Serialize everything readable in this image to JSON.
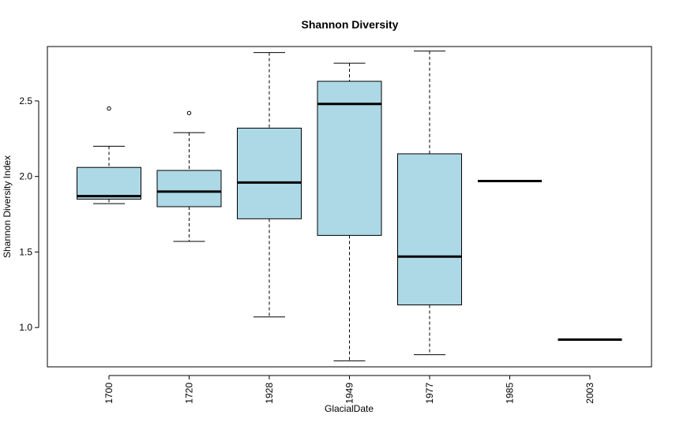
{
  "chart_data": {
    "type": "boxplot",
    "title": "Shannon Diversity",
    "xlabel": "GlacialDate",
    "ylabel": "Shannon Diversity Index",
    "ylim": [
      0.74,
      2.86
    ],
    "yticks": [
      "1.0",
      "1.5",
      "2.0",
      "2.5"
    ],
    "ytick_values": [
      1.0,
      1.5,
      2.0,
      2.5
    ],
    "box_color": "#add8e6",
    "grid": false,
    "categories": [
      "1700",
      "1720",
      "1928",
      "1949",
      "1977",
      "1985",
      "2003"
    ],
    "boxes": [
      {
        "category": "1700",
        "whisker_low": 1.82,
        "q1": 1.85,
        "median": 1.87,
        "q3": 2.06,
        "whisker_high": 2.2,
        "outliers": [
          2.45
        ]
      },
      {
        "category": "1720",
        "whisker_low": 1.57,
        "q1": 1.8,
        "median": 1.9,
        "q3": 2.04,
        "whisker_high": 2.29,
        "outliers": [
          2.42
        ]
      },
      {
        "category": "1928",
        "whisker_low": 1.07,
        "q1": 1.72,
        "median": 1.96,
        "q3": 2.32,
        "whisker_high": 2.82,
        "outliers": []
      },
      {
        "category": "1949",
        "whisker_low": 0.78,
        "q1": 1.61,
        "median": 2.48,
        "q3": 2.63,
        "whisker_high": 2.75,
        "outliers": []
      },
      {
        "category": "1977",
        "whisker_low": 0.82,
        "q1": 1.15,
        "median": 1.47,
        "q3": 2.15,
        "whisker_high": 2.83,
        "outliers": []
      },
      {
        "category": "1985",
        "whisker_low": 1.97,
        "q1": 1.97,
        "median": 1.97,
        "q3": 1.97,
        "whisker_high": 1.97,
        "outliers": []
      },
      {
        "category": "2003",
        "whisker_low": 0.92,
        "q1": 0.92,
        "median": 0.92,
        "q3": 0.92,
        "whisker_high": 0.92,
        "outliers": []
      }
    ]
  }
}
